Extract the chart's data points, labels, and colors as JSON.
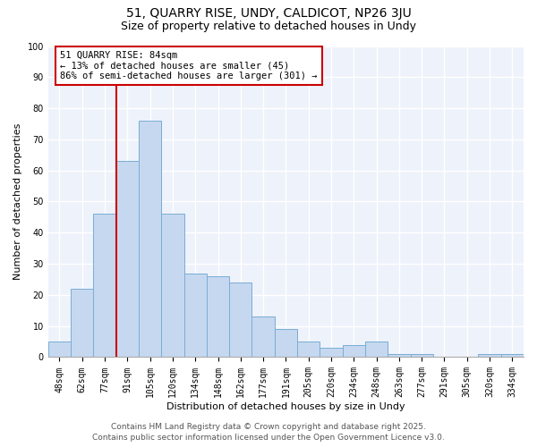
{
  "title1": "51, QUARRY RISE, UNDY, CALDICOT, NP26 3JU",
  "title2": "Size of property relative to detached houses in Undy",
  "xlabel": "Distribution of detached houses by size in Undy",
  "ylabel": "Number of detached properties",
  "categories": [
    "48sqm",
    "62sqm",
    "77sqm",
    "91sqm",
    "105sqm",
    "120sqm",
    "134sqm",
    "148sqm",
    "162sqm",
    "177sqm",
    "191sqm",
    "205sqm",
    "220sqm",
    "234sqm",
    "248sqm",
    "263sqm",
    "277sqm",
    "291sqm",
    "305sqm",
    "320sqm",
    "334sqm"
  ],
  "values": [
    5,
    22,
    46,
    63,
    76,
    46,
    27,
    26,
    24,
    13,
    9,
    5,
    3,
    4,
    5,
    1,
    1,
    0,
    0,
    1,
    1
  ],
  "bar_color": "#c5d8f0",
  "bar_edge_color": "#7aadd4",
  "red_line_x": 2.5,
  "annotation_line1": "51 QUARRY RISE: 84sqm",
  "annotation_line2": "← 13% of detached houses are smaller (45)",
  "annotation_line3": "86% of semi-detached houses are larger (301) →",
  "annotation_box_color": "white",
  "annotation_box_edge_color": "#cc0000",
  "red_line_color": "#cc0000",
  "background_color": "#eef2fb",
  "grid_color": "white",
  "ylim": [
    0,
    100
  ],
  "yticks": [
    0,
    10,
    20,
    30,
    40,
    50,
    60,
    70,
    80,
    90,
    100
  ],
  "footer1": "Contains HM Land Registry data © Crown copyright and database right 2025.",
  "footer2": "Contains public sector information licensed under the Open Government Licence v3.0.",
  "title_fontsize": 10,
  "subtitle_fontsize": 9,
  "axis_label_fontsize": 8,
  "tick_fontsize": 7,
  "annotation_fontsize": 7.5,
  "footer_fontsize": 6.5
}
